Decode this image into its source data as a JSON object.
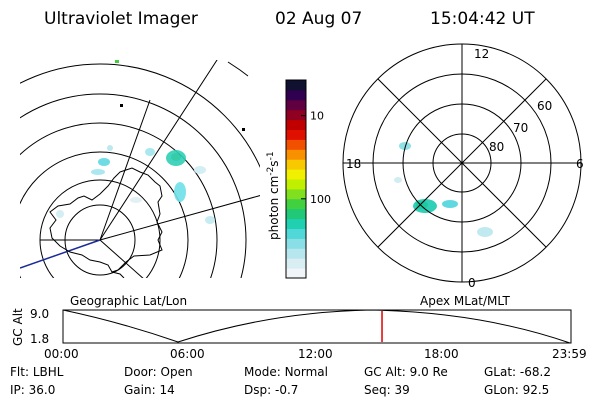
{
  "header": {
    "instrument": "Ultraviolet Imager",
    "date": "02 Aug 07",
    "time": "15:04:42 UT"
  },
  "left_map": {
    "label": "Geographic Lat/Lon"
  },
  "right_map": {
    "label": "Apex MLat/MLT",
    "mlt_labels": {
      "top": "12",
      "left": "18",
      "right": "6",
      "bottom": "0"
    },
    "lat_labels": [
      "60",
      "70",
      "80"
    ]
  },
  "colorbar": {
    "label_main": "photon cm",
    "label_exp1": "-2",
    "label_mid": "s",
    "label_exp2": "-1",
    "ticks": [
      "100",
      "10"
    ],
    "colors": [
      "#f0f6f8",
      "#d8eef2",
      "#b8e6ee",
      "#8adfe6",
      "#50d8d8",
      "#20d0b0",
      "#20c878",
      "#40d040",
      "#80e020",
      "#c0f000",
      "#f0f000",
      "#f8c800",
      "#f89000",
      "#f05000",
      "#e01000",
      "#c00000",
      "#900020",
      "#600040",
      "#300050",
      "#101030"
    ],
    "tick_positions": [
      0.4,
      0.82
    ]
  },
  "timeline": {
    "axis_label": "GC Alt",
    "y_ticks": [
      "9.0",
      "1.8"
    ],
    "x_ticks": [
      "00:00",
      "06:00",
      "12:00",
      "18:00",
      "23:59"
    ],
    "marker_fraction": 0.628
  },
  "status": {
    "row1": [
      {
        "label": "Flt:",
        "value": "LBHL"
      },
      {
        "label": "Door:",
        "value": "Open"
      },
      {
        "label": "Mode:",
        "value": "Normal"
      },
      {
        "label": "GC Alt:",
        "value": "9.0 Re"
      },
      {
        "label": "GLat:",
        "value": "-68.2"
      }
    ],
    "row2": [
      {
        "label": "IP:",
        "value": "36.0"
      },
      {
        "label": "Gain:",
        "value": "14"
      },
      {
        "label": "Dsp:",
        "value": "-0.7"
      },
      {
        "label": "Seq:",
        "value": "39"
      },
      {
        "label": "GLon:",
        "value": "92.5"
      }
    ]
  }
}
